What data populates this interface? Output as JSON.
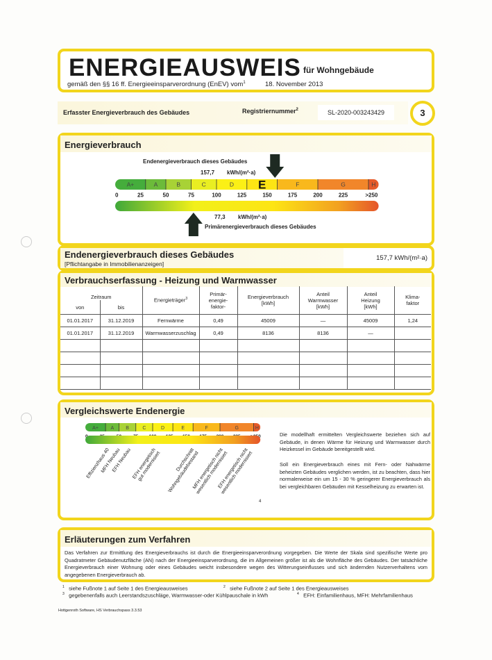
{
  "header": {
    "title": "ENERGIEAUSWEIS",
    "subtitle": "für Wohngebäude",
    "regulation": "gemäß den §§ 16 ff. Energieeinsparverordnung (EnEV) vom",
    "regulation_sup": "1",
    "date": "18. November 2013"
  },
  "registration": {
    "label": "Erfasster Energieverbrauch des Gebäudes",
    "reg_label": "Registriernummer",
    "reg_sup": "2",
    "reg_number": "SL-2020-003243429",
    "page_number": "3"
  },
  "energy": {
    "title": "Energieverbrauch",
    "end_label": "Endenergieverbrauch dieses Gebäudes",
    "end_value": "157,7",
    "end_value_num": 157.7,
    "unit": "kWh/(m²·a)",
    "primary_value": "77,3",
    "primary_value_num": 77.3,
    "primary_label": "Primärenergieverbrauch dieses Gebäudes",
    "current_class": "E"
  },
  "scale": {
    "classes": [
      {
        "label": "A+",
        "from": 0,
        "to": 30,
        "color": "#45ad3c"
      },
      {
        "label": "A",
        "from": 30,
        "to": 50,
        "color": "#6cbb3a"
      },
      {
        "label": "B",
        "from": 50,
        "to": 75,
        "color": "#a8d236"
      },
      {
        "label": "C",
        "from": 75,
        "to": 100,
        "color": "#e9ee22"
      },
      {
        "label": "D",
        "from": 100,
        "to": 130,
        "color": "#fbf016"
      },
      {
        "label": "E",
        "from": 130,
        "to": 160,
        "color": "#fde514"
      },
      {
        "label": "F",
        "from": 160,
        "to": 200,
        "color": "#f9b81c"
      },
      {
        "label": "G",
        "from": 200,
        "to": 250,
        "color": "#f1862a"
      },
      {
        "label": "H",
        "from": 250,
        "to": 260,
        "color": "#e65b2a"
      }
    ],
    "ticks": [
      "0",
      "25",
      "50",
      "75",
      "100",
      "125",
      "150",
      "175",
      "200",
      "225",
      ">250"
    ]
  },
  "end_energy": {
    "title": "Endenergieverbrauch dieses Gebäudes",
    "note": "[Pflichtangabe in Immobilienanzeigen]",
    "value": "157,7 kWh/(m²·a)"
  },
  "consumption": {
    "title": "Verbrauchserfassung - Heizung und Warmwasser",
    "headers": {
      "period": "Zeitraum",
      "from": "von",
      "to": "bis",
      "carrier": "Energieträger",
      "carrier_sup": "3",
      "primary_factor": "Primär-energie-faktor-",
      "consumption": "Energieverbrauch [kWh]",
      "hot_water": "Anteil Warmwasser [kWh]",
      "heating": "Anteil Heizung [kWh]",
      "climate": "Klima-faktor"
    },
    "rows": [
      [
        "01.01.2017",
        "31.12.2019",
        "Fernwärme",
        "0,49",
        "45009",
        "—",
        "45009",
        "1,24"
      ],
      [
        "01.01.2017",
        "31.12.2019",
        "Warmwasserzuschlag",
        "0,49",
        "8136",
        "8136",
        "—",
        ""
      ]
    ]
  },
  "comparison": {
    "title": "Vergleichswerte Endenergie",
    "footnote_mark": "4",
    "references": [
      {
        "label": "Effizienzhaus 40",
        "value": 27
      },
      {
        "label": "MFH Neubau",
        "value": 43
      },
      {
        "label": "EFH Neubau",
        "value": 59
      },
      {
        "label": "EFH energetisch|gut modernisiert",
        "value": 96
      },
      {
        "label": "Durchschnitt|Wohngebäudebestand",
        "value": 153
      },
      {
        "label": "MFH energetisch nicht|wesentlich modernisiert",
        "value": 196
      },
      {
        "label": "EFH energetisch nicht|wesentlich modernisiert",
        "value": 233
      }
    ],
    "text1": "Die modellhaft ermittelten Vergleichswerte beziehen sich auf Gebäude, in denen Wärme für Heizung und Warmwasser durch Heizkessel im Gebäude bereitgestellt wird.",
    "text2": "Soll ein Energieverbrauch eines mit Fern- oder Nahwärme beheizten Gebäudes verglichen werden, ist zu beachten, dass hier normalerweise ein um 15 - 30 % geringerer Energieverbrauch als bei vergleichbaren Gebäuden mit Kesselheizung zu erwarten ist."
  },
  "explanation": {
    "title": "Erläuterungen zum Verfahren",
    "text": "Das Verfahren zur Ermittlung des Energieverbrauchs ist durch die Energieeinsparverordnung vorgegeben. Die Werte der Skala sind spezifische Werte pro Quadratmeter Gebäudenutzfläche (AN) nach der Energieeinsparverordnung, die im Allgemeinen größer ist als die Wohnfläche des Gebäudes. Der tatsächliche Energieverbrauch einer Wohnung oder eines Gebäudes weicht insbesondere wegen des Witterungseinflusses und sich ändernden Nutzerverhaltens vom angegebenen Energieverbrauch ab."
  },
  "footnotes": {
    "f1_mark": "1",
    "f1": "siehe Fußnote 1 auf Seite 1 des Energieausweises",
    "f2_mark": "2",
    "f2": "siehe Fußnote 2 auf Seite 1 des Energieausweises",
    "f3_mark": "3",
    "f3": "gegebenenfalls auch Leerstandszuschläge, Warmwasser-oder Kühlpauschale in kWh",
    "f4_mark": "4",
    "f4": "EFH: Einfamilienhaus, MFH: Mehrfamilienhaus"
  },
  "software": "Hottgenroth Software, HS Verbrauchspass 3.3.53",
  "colors": {
    "frame": "#f2d51c",
    "cream": "#fbf6dc"
  }
}
